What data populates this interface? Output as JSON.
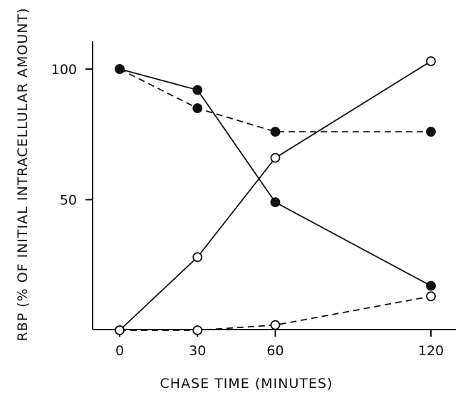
{
  "chart_data": {
    "type": "line",
    "title": "",
    "xlabel": "CHASE TIME (MINUTES)",
    "ylabel": "RBP (% OF INITIAL INTRACELLULAR AMOUNT)",
    "xlim": [
      0,
      120
    ],
    "ylim": [
      0,
      110
    ],
    "x_ticks": [
      "0",
      "30",
      "60",
      "120"
    ],
    "y_ticks": [
      "50",
      "100"
    ],
    "x_tick_values": [
      0,
      30,
      60,
      120
    ],
    "y_tick_values": [
      50,
      100
    ],
    "grid": false,
    "legend": "none",
    "series": [
      {
        "style": "solid",
        "marker": "filled-circle",
        "x": [
          0,
          30,
          60,
          120
        ],
        "y": [
          100,
          92,
          49,
          17
        ]
      },
      {
        "style": "dashed",
        "marker": "filled-circle",
        "x": [
          0,
          30,
          60,
          120
        ],
        "y": [
          100,
          85,
          76,
          76
        ]
      },
      {
        "style": "solid",
        "marker": "open-circle",
        "x": [
          0,
          30,
          60,
          120
        ],
        "y": [
          0,
          28,
          66,
          103
        ]
      },
      {
        "style": "dashed",
        "marker": "open-circle",
        "x": [
          0,
          30,
          60,
          120
        ],
        "y": [
          0,
          0,
          2,
          13
        ]
      }
    ],
    "colors": {
      "ink": "#111111",
      "background": "#ffffff"
    }
  }
}
